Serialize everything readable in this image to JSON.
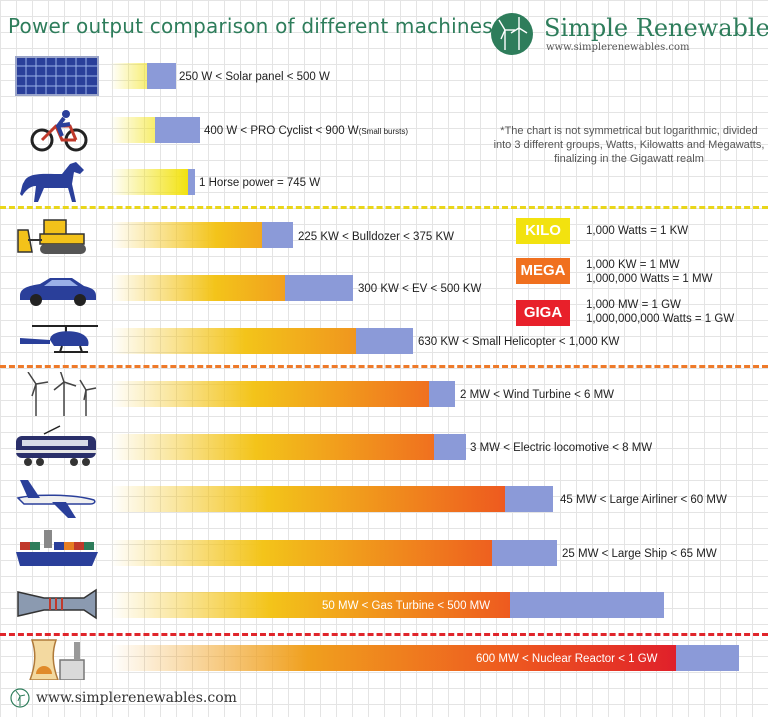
{
  "header": {
    "title": "Power output comparison of different machines",
    "brand_name": "Simple Renewables",
    "brand_url": "www.simplerenewables.com"
  },
  "note": "*The chart is not symmetrical but logarithmic, divided into 3 different groups, Watts, Kilowatts and Megawatts, finalizing in the Gigawatt realm",
  "units": [
    {
      "badge": "KILO",
      "color": "#f2e20f",
      "lines": [
        "1,000 Watts = 1 KW"
      ]
    },
    {
      "badge": "MEGA",
      "color": "#f0701f",
      "lines": [
        "1,000 KW = 1 MW",
        "1,000,000 Watts = 1 MW"
      ]
    },
    {
      "badge": "GIGA",
      "color": "#e8202a",
      "lines": [
        "1,000 MW = 1 GW",
        "1,000,000,000 Watts = 1 GW"
      ]
    }
  ],
  "colors": {
    "watt_divider": "#e9d61a",
    "mega_divider": "#ee7a2a",
    "giga_divider": "#e0252b",
    "range_fill": "#8b9ad8"
  },
  "chart_data": {
    "type": "bar",
    "scale": "logarithmic",
    "rows": [
      {
        "machine": "Solar panel",
        "label": "250 W < Solar panel < 500 W",
        "min_w": 250,
        "max_w": 500,
        "icon": "solar-panel-icon"
      },
      {
        "machine": "PRO Cyclist",
        "label": "400 W < PRO Cyclist < 900 W",
        "note": "(Small bursts)",
        "min_w": 400,
        "max_w": 900,
        "icon": "cyclist-icon"
      },
      {
        "machine": "Horse power",
        "label": "1 Horse power = 745 W",
        "min_w": 745,
        "max_w": 745,
        "icon": "horse-icon"
      },
      {
        "machine": "Bulldozer",
        "label": "225 KW < Bulldozer < 375 KW",
        "min_w": 225000,
        "max_w": 375000,
        "icon": "bulldozer-icon"
      },
      {
        "machine": "EV",
        "label": "300 KW < EV < 500 KW",
        "min_w": 300000,
        "max_w": 500000,
        "icon": "electric-car-icon"
      },
      {
        "machine": "Small Helicopter",
        "label": "630 KW < Small Helicopter < 1,000 KW",
        "min_w": 630000,
        "max_w": 1000000,
        "icon": "helicopter-icon"
      },
      {
        "machine": "Wind Turbine",
        "label": "2 MW < Wind Turbine < 6 MW",
        "min_w": 2000000,
        "max_w": 6000000,
        "icon": "wind-turbine-icon"
      },
      {
        "machine": "Electric locomotive",
        "label": "3 MW < Electric locomotive < 8 MW",
        "min_w": 3000000,
        "max_w": 8000000,
        "icon": "locomotive-icon"
      },
      {
        "machine": "Large Airliner",
        "label": "45 MW < Large Airliner < 60 MW",
        "min_w": 45000000,
        "max_w": 60000000,
        "icon": "airliner-icon"
      },
      {
        "machine": "Large Ship",
        "label": "25 MW < Large Ship < 65 MW",
        "min_w": 25000000,
        "max_w": 65000000,
        "icon": "cargo-ship-icon"
      },
      {
        "machine": "Gas Turbine",
        "label": "50 MW < Gas Turbine < 500 MW",
        "min_w": 50000000,
        "max_w": 500000000,
        "icon": "gas-turbine-icon"
      },
      {
        "machine": "Nuclear Reactor",
        "label": "600 MW < Nuclear Reactor < 1 GW",
        "min_w": 600000000,
        "max_w": 1000000000,
        "icon": "nuclear-plant-icon"
      }
    ]
  },
  "footer": {
    "url": "www.simplerenewables.com"
  }
}
